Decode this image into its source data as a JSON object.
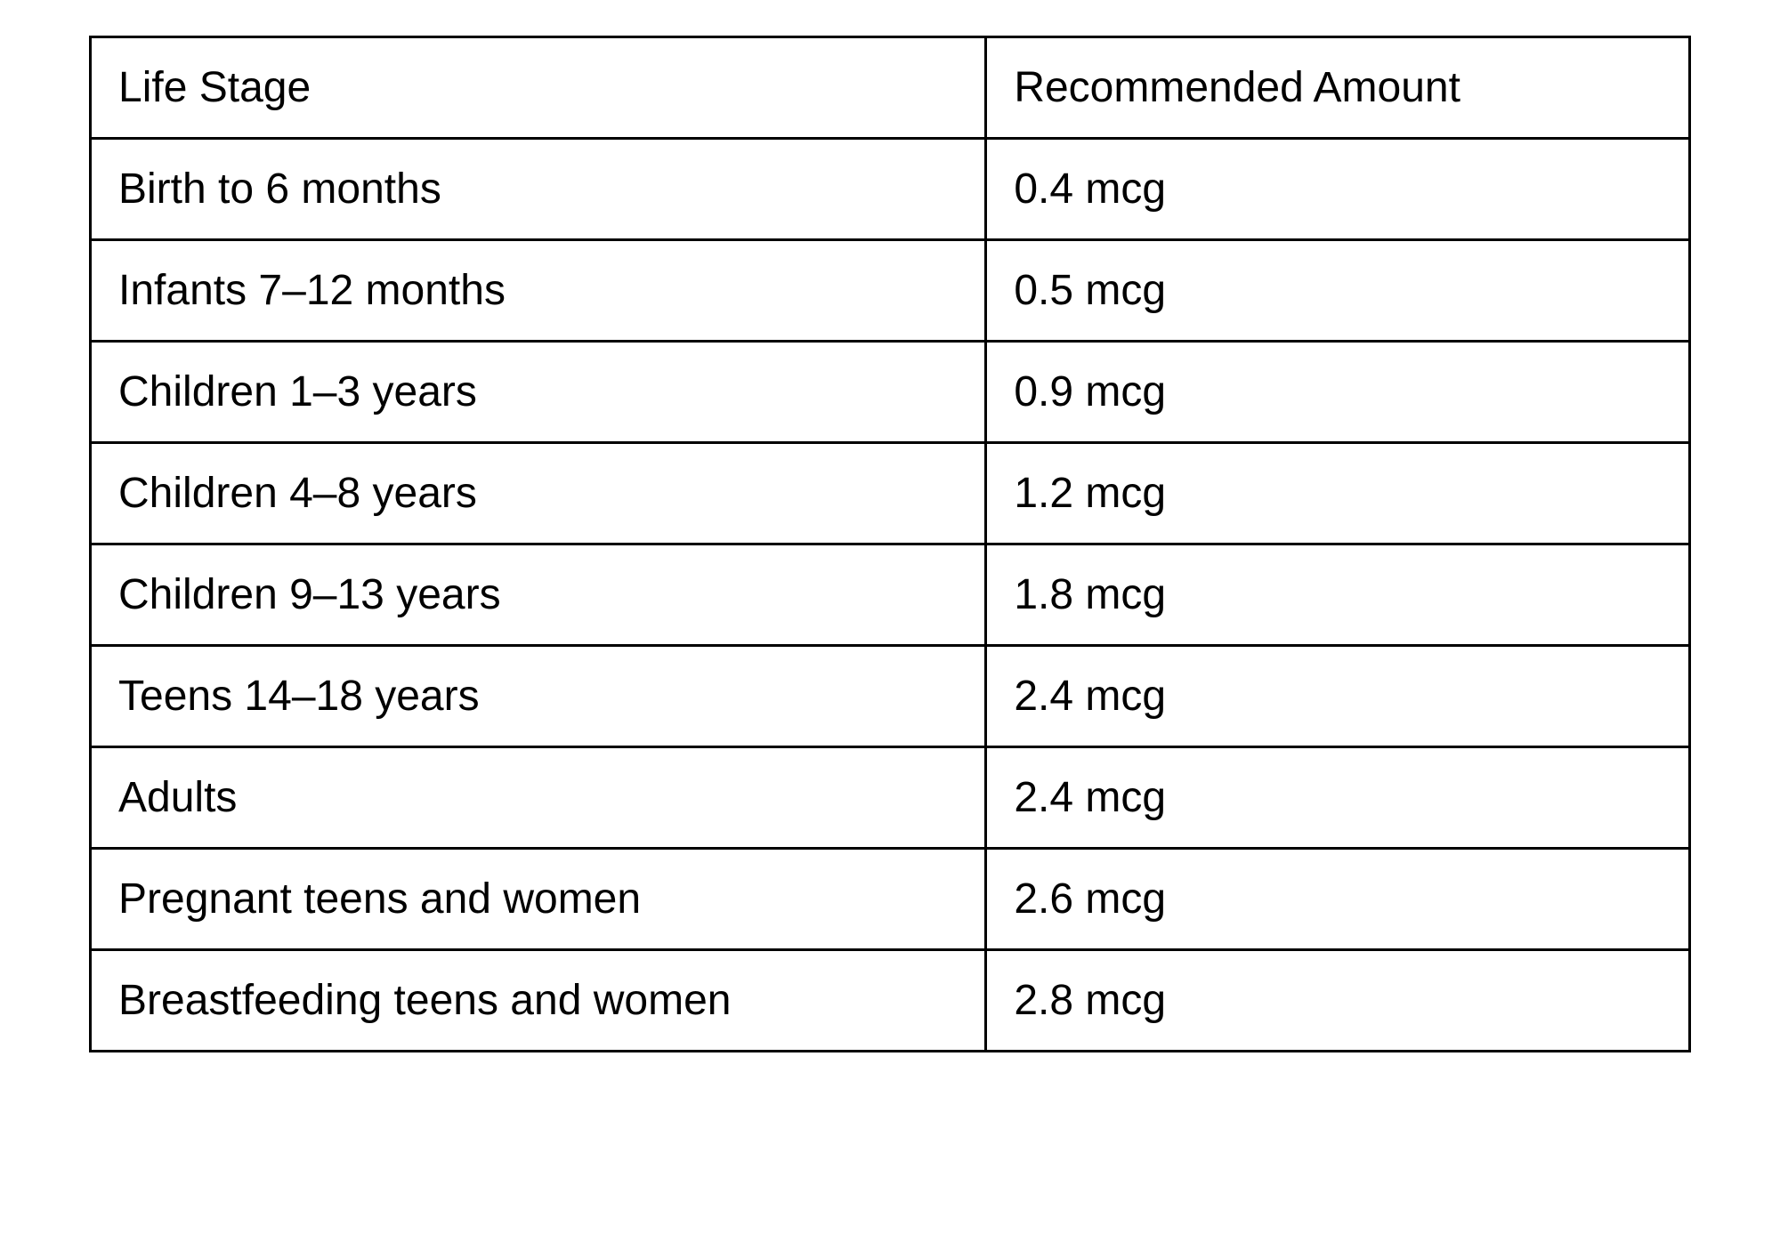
{
  "table": {
    "columns": [
      "Life Stage",
      "Recommended Amount"
    ],
    "rows": [
      [
        "Birth to 6 months",
        "0.4 mcg"
      ],
      [
        "Infants 7–12 months",
        "0.5 mcg"
      ],
      [
        "Children 1–3 years",
        "0.9 mcg"
      ],
      [
        "Children 4–8 years",
        "1.2 mcg"
      ],
      [
        "Children 9–13 years",
        "1.8 mcg"
      ],
      [
        "Teens 14–18 years",
        "2.4 mcg"
      ],
      [
        "Adults",
        "2.4 mcg"
      ],
      [
        "Pregnant teens and women",
        "2.6 mcg"
      ],
      [
        "Breastfeeding teens and women",
        "2.8 mcg"
      ]
    ],
    "column_widths": [
      "56%",
      "44%"
    ],
    "border_color": "#000000",
    "border_width": 3,
    "background_color": "#ffffff",
    "text_color": "#000000",
    "font_size": 48,
    "cell_padding": "28px 30px"
  }
}
